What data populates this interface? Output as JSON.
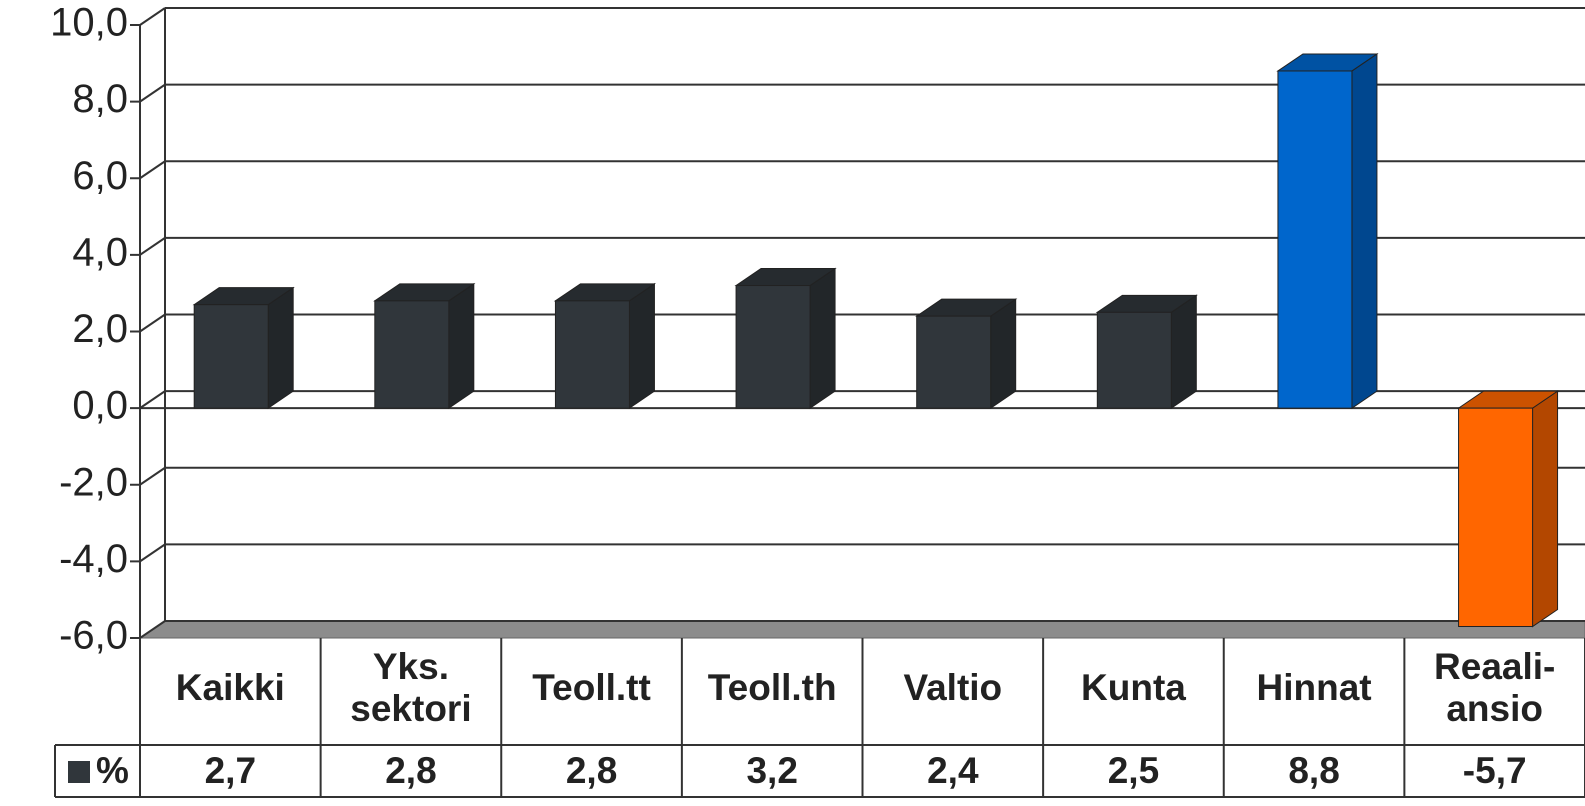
{
  "chart_data": {
    "type": "bar3d",
    "categories": [
      "Kaikki",
      "Yks.\nsektori",
      "Teoll.tt",
      "Teoll.th",
      "Valtio",
      "Kunta",
      "Hinnat",
      "Reaali-\nansio"
    ],
    "series": [
      {
        "name": "%",
        "color": "#30363b",
        "colors": [
          "#30363b",
          "#30363b",
          "#30363b",
          "#30363b",
          "#30363b",
          "#30363b",
          "#0066cc",
          "#ff6600"
        ],
        "values": [
          2.7,
          2.8,
          2.8,
          3.2,
          2.4,
          2.5,
          8.8,
          -5.7
        ],
        "value_labels": [
          "2,7",
          "2,8",
          "2,8",
          "3,2",
          "2,4",
          "2,5",
          "8,8",
          "-5,7"
        ]
      }
    ],
    "ylim": [
      -6,
      10
    ],
    "yticks": [
      {
        "value": -6,
        "label": "-6,0"
      },
      {
        "value": -4,
        "label": "-4,0"
      },
      {
        "value": -2,
        "label": "-2,0"
      },
      {
        "value": 0,
        "label": "0,0"
      },
      {
        "value": 2,
        "label": "2,0"
      },
      {
        "value": 4,
        "label": "4,0"
      },
      {
        "value": 6,
        "label": "6,0"
      },
      {
        "value": 8,
        "label": "8,0"
      },
      {
        "value": 10,
        "label": "10,0"
      }
    ],
    "grid": true
  }
}
